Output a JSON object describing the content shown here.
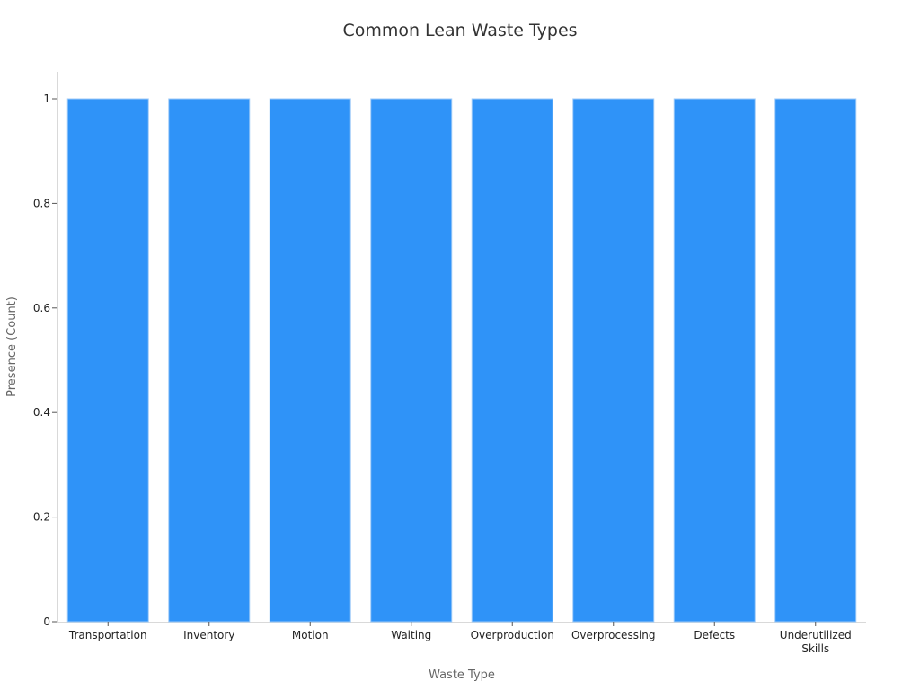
{
  "chart_data": {
    "type": "bar",
    "title": "Common Lean Waste Types",
    "xlabel": "Waste Type",
    "ylabel": "Presence (Count)",
    "categories": [
      [
        "Transportation"
      ],
      [
        "Inventory"
      ],
      [
        "Motion"
      ],
      [
        "Waiting"
      ],
      [
        "Overproduction"
      ],
      [
        "Overprocessing"
      ],
      [
        "Defects"
      ],
      [
        "Underutilized",
        "Skills"
      ]
    ],
    "values": [
      1,
      1,
      1,
      1,
      1,
      1,
      1,
      1
    ],
    "ylim": [
      0,
      1
    ],
    "yticks": [
      "0",
      "0.2",
      "0.4",
      "0.6",
      "0.8",
      "1"
    ],
    "bar_color": "#2f93f8",
    "grid": false,
    "legend": "none"
  }
}
